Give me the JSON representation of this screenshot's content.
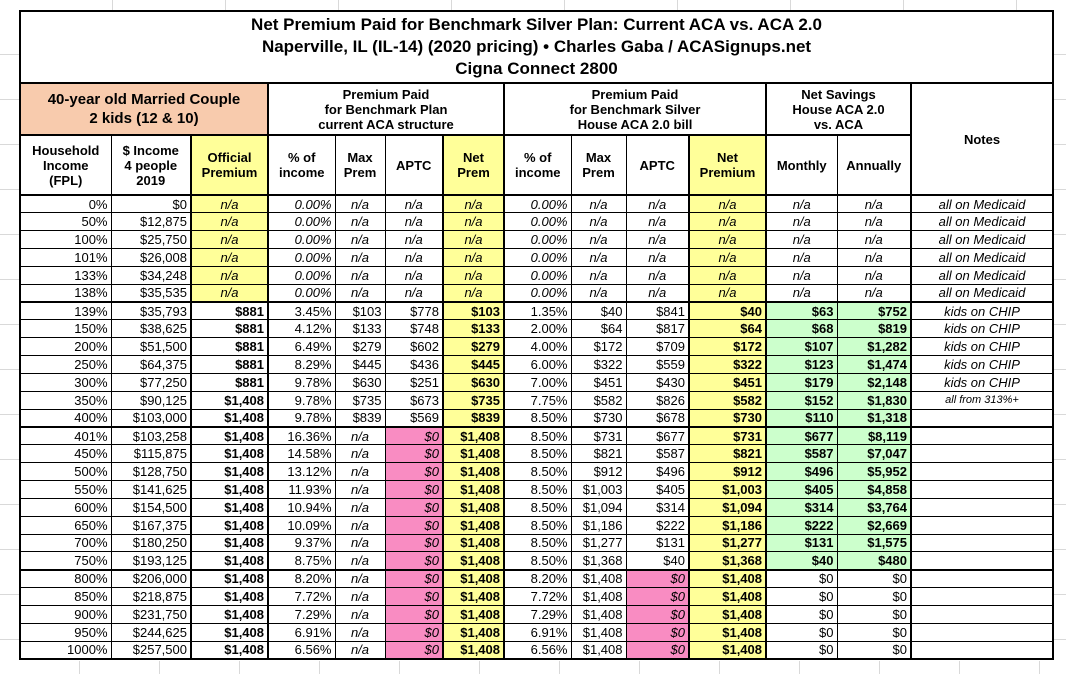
{
  "chart_data": {
    "type": "table",
    "title": "Net Premium Paid for Benchmark Silver Plan: Current ACA vs. ACA 2.0",
    "subtitle": "Naperville, IL (IL-14) (2020 pricing) • Charles Gaba / ACASignups.net",
    "plan": "Cigna Connect 2800",
    "household_header": "40-year old Married Couple\n2 kids (12 & 10)",
    "sections": {
      "aca": "Premium Paid\nfor Benchmark Plan\ncurrent ACA structure",
      "aca2": "Premium Paid\nfor Benchmark Silver\nHouse ACA 2.0 bill",
      "savings": "Net Savings\nHouse ACA 2.0\nvs. ACA",
      "notes": "Notes"
    },
    "columns": [
      {
        "key": "fpl",
        "label": "Household\nIncome\n(FPL)"
      },
      {
        "key": "income",
        "label": "$ Income\n4 people\n2019"
      },
      {
        "key": "official",
        "label": "Official\nPremium"
      },
      {
        "key": "pct1",
        "label": "% of\nincome"
      },
      {
        "key": "max1",
        "label": "Max\nPrem"
      },
      {
        "key": "aptc1",
        "label": "APTC"
      },
      {
        "key": "net1",
        "label": "Net\nPrem"
      },
      {
        "key": "pct2",
        "label": "% of\nincome"
      },
      {
        "key": "max2",
        "label": "Max\nPrem"
      },
      {
        "key": "aptc2",
        "label": "APTC"
      },
      {
        "key": "net2",
        "label": "Net\nPremium"
      },
      {
        "key": "monthly",
        "label": "Monthly"
      },
      {
        "key": "annually",
        "label": "Annually"
      },
      {
        "key": "notes",
        "label": "Notes"
      }
    ],
    "rows": [
      [
        "0%",
        "$0",
        "n/a",
        "0.00%",
        "n/a",
        "n/a",
        "n/a",
        "0.00%",
        "n/a",
        "n/a",
        "n/a",
        "n/a",
        "n/a",
        "all on Medicaid"
      ],
      [
        "50%",
        "$12,875",
        "n/a",
        "0.00%",
        "n/a",
        "n/a",
        "n/a",
        "0.00%",
        "n/a",
        "n/a",
        "n/a",
        "n/a",
        "n/a",
        "all on Medicaid"
      ],
      [
        "100%",
        "$25,750",
        "n/a",
        "0.00%",
        "n/a",
        "n/a",
        "n/a",
        "0.00%",
        "n/a",
        "n/a",
        "n/a",
        "n/a",
        "n/a",
        "all on Medicaid"
      ],
      [
        "101%",
        "$26,008",
        "n/a",
        "0.00%",
        "n/a",
        "n/a",
        "n/a",
        "0.00%",
        "n/a",
        "n/a",
        "n/a",
        "n/a",
        "n/a",
        "all on Medicaid"
      ],
      [
        "133%",
        "$34,248",
        "n/a",
        "0.00%",
        "n/a",
        "n/a",
        "n/a",
        "0.00%",
        "n/a",
        "n/a",
        "n/a",
        "n/a",
        "n/a",
        "all on Medicaid"
      ],
      [
        "138%",
        "$35,535",
        "n/a",
        "0.00%",
        "n/a",
        "n/a",
        "n/a",
        "0.00%",
        "n/a",
        "n/a",
        "n/a",
        "n/a",
        "n/a",
        "all on Medicaid"
      ],
      [
        "139%",
        "$35,793",
        "$881",
        "3.45%",
        "$103",
        "$778",
        "$103",
        "1.35%",
        "$40",
        "$841",
        "$40",
        "$63",
        "$752",
        "kids on CHIP"
      ],
      [
        "150%",
        "$38,625",
        "$881",
        "4.12%",
        "$133",
        "$748",
        "$133",
        "2.00%",
        "$64",
        "$817",
        "$64",
        "$68",
        "$819",
        "kids on CHIP"
      ],
      [
        "200%",
        "$51,500",
        "$881",
        "6.49%",
        "$279",
        "$602",
        "$279",
        "4.00%",
        "$172",
        "$709",
        "$172",
        "$107",
        "$1,282",
        "kids on CHIP"
      ],
      [
        "250%",
        "$64,375",
        "$881",
        "8.29%",
        "$445",
        "$436",
        "$445",
        "6.00%",
        "$322",
        "$559",
        "$322",
        "$123",
        "$1,474",
        "kids on CHIP"
      ],
      [
        "300%",
        "$77,250",
        "$881",
        "9.78%",
        "$630",
        "$251",
        "$630",
        "7.00%",
        "$451",
        "$430",
        "$451",
        "$179",
        "$2,148",
        "kids on CHIP"
      ],
      [
        "350%",
        "$90,125",
        "$1,408",
        "9.78%",
        "$735",
        "$673",
        "$735",
        "7.75%",
        "$582",
        "$826",
        "$582",
        "$152",
        "$1,830",
        "all from 313%+"
      ],
      [
        "400%",
        "$103,000",
        "$1,408",
        "9.78%",
        "$839",
        "$569",
        "$839",
        "8.50%",
        "$730",
        "$678",
        "$730",
        "$110",
        "$1,318",
        ""
      ],
      [
        "401%",
        "$103,258",
        "$1,408",
        "16.36%",
        "n/a",
        "$0",
        "$1,408",
        "8.50%",
        "$731",
        "$677",
        "$731",
        "$677",
        "$8,119",
        ""
      ],
      [
        "450%",
        "$115,875",
        "$1,408",
        "14.58%",
        "n/a",
        "$0",
        "$1,408",
        "8.50%",
        "$821",
        "$587",
        "$821",
        "$587",
        "$7,047",
        ""
      ],
      [
        "500%",
        "$128,750",
        "$1,408",
        "13.12%",
        "n/a",
        "$0",
        "$1,408",
        "8.50%",
        "$912",
        "$496",
        "$912",
        "$496",
        "$5,952",
        ""
      ],
      [
        "550%",
        "$141,625",
        "$1,408",
        "11.93%",
        "n/a",
        "$0",
        "$1,408",
        "8.50%",
        "$1,003",
        "$405",
        "$1,003",
        "$405",
        "$4,858",
        ""
      ],
      [
        "600%",
        "$154,500",
        "$1,408",
        "10.94%",
        "n/a",
        "$0",
        "$1,408",
        "8.50%",
        "$1,094",
        "$314",
        "$1,094",
        "$314",
        "$3,764",
        ""
      ],
      [
        "650%",
        "$167,375",
        "$1,408",
        "10.09%",
        "n/a",
        "$0",
        "$1,408",
        "8.50%",
        "$1,186",
        "$222",
        "$1,186",
        "$222",
        "$2,669",
        ""
      ],
      [
        "700%",
        "$180,250",
        "$1,408",
        "9.37%",
        "n/a",
        "$0",
        "$1,408",
        "8.50%",
        "$1,277",
        "$131",
        "$1,277",
        "$131",
        "$1,575",
        ""
      ],
      [
        "750%",
        "$193,125",
        "$1,408",
        "8.75%",
        "n/a",
        "$0",
        "$1,408",
        "8.50%",
        "$1,368",
        "$40",
        "$1,368",
        "$40",
        "$480",
        ""
      ],
      [
        "800%",
        "$206,000",
        "$1,408",
        "8.20%",
        "n/a",
        "$0",
        "$1,408",
        "8.20%",
        "$1,408",
        "$0",
        "$1,408",
        "$0",
        "$0",
        ""
      ],
      [
        "850%",
        "$218,875",
        "$1,408",
        "7.72%",
        "n/a",
        "$0",
        "$1,408",
        "7.72%",
        "$1,408",
        "$0",
        "$1,408",
        "$0",
        "$0",
        ""
      ],
      [
        "900%",
        "$231,750",
        "$1,408",
        "7.29%",
        "n/a",
        "$0",
        "$1,408",
        "7.29%",
        "$1,408",
        "$0",
        "$1,408",
        "$0",
        "$0",
        ""
      ],
      [
        "950%",
        "$244,625",
        "$1,408",
        "6.91%",
        "n/a",
        "$0",
        "$1,408",
        "6.91%",
        "$1,408",
        "$0",
        "$1,408",
        "$0",
        "$0",
        ""
      ],
      [
        "1000%",
        "$257,500",
        "$1,408",
        "6.56%",
        "n/a",
        "$0",
        "$1,408",
        "6.56%",
        "$1,408",
        "$0",
        "$1,408",
        "$0",
        "$0",
        ""
      ]
    ],
    "colors": {
      "header_orange": "#F8CBAD",
      "highlight_yellow": "#FFFF99",
      "zero_pink": "#F98CC2",
      "savings_green": "#CCFFCC",
      "border_black": "#000000",
      "gridline_gray": "#D9D9D9"
    },
    "layout_hints": {
      "grid": "bordered table",
      "group_breaks_after_fpl": [
        "138%",
        "400%",
        "750%"
      ]
    }
  }
}
